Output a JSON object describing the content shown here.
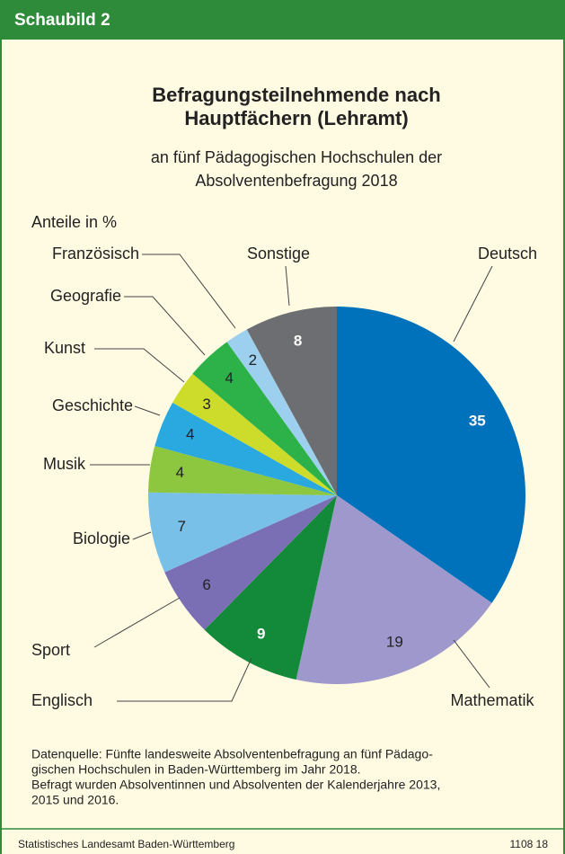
{
  "header": "Schaubild 2",
  "chart_data": {
    "type": "pie",
    "title": "Befragungsteilnehmende nach\nHauptfächern (Lehramt)",
    "subtitle": "an fünf Pädagogischen Hochschulen der\nAbsolventenbefragung 2018",
    "unit_note": "Anteile in %",
    "categories": [
      "Deutsch",
      "Mathematik",
      "Englisch",
      "Sport",
      "Biologie",
      "Musik",
      "Geschichte",
      "Kunst",
      "Geografie",
      "Französisch",
      "Sonstige"
    ],
    "values": [
      35,
      19,
      9,
      6,
      7,
      4,
      4,
      3,
      4,
      2,
      8
    ],
    "colors": [
      "#0072bc",
      "#9e98cc",
      "#138a3a",
      "#7a6fb5",
      "#79c0e8",
      "#8dc63f",
      "#29a9e0",
      "#cddc2a",
      "#2db24a",
      "#9dd0ef",
      "#6d6e71"
    ],
    "label_colors": [
      "#ffffff",
      "#222222",
      "#ffffff",
      "#222222",
      "#222222",
      "#222222",
      "#222222",
      "#222222",
      "#222222",
      "#222222",
      "#ffffff"
    ]
  },
  "source": [
    "Datenquelle: Fünfte landesweite Absolventenbefragung an fünf Pädago-",
    "gischen Hochschulen in Baden-Württemberg im Jahr 2018.",
    "Befragt wurden Absolventinnen und Absolventen der Kalenderjahre 2013,",
    "2015 und 2016."
  ],
  "footer": {
    "publisher": "Statistisches Landesamt Baden-Württemberg",
    "code": "1108 18"
  }
}
